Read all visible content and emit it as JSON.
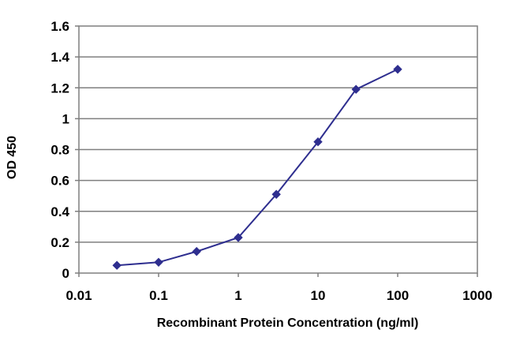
{
  "chart_data": {
    "type": "line",
    "title": "",
    "xlabel": "Recombinant Protein Concentration (ng/ml)",
    "ylabel": "OD 450",
    "x_scale": "log",
    "xlim": [
      0.01,
      1000
    ],
    "ylim": [
      0,
      1.6
    ],
    "x_ticks": [
      0.01,
      0.1,
      1,
      10,
      100,
      1000
    ],
    "x_tick_labels": [
      "0.01",
      "0.1",
      "1",
      "10",
      "100",
      "1000"
    ],
    "y_ticks": [
      0,
      0.2,
      0.4,
      0.6,
      0.8,
      1,
      1.2,
      1.4,
      1.6
    ],
    "y_tick_labels": [
      "0",
      "0.2",
      "0.4",
      "0.6",
      "0.8",
      "1",
      "1.2",
      "1.4",
      "1.6"
    ],
    "grid": "horizontal",
    "legend": "none",
    "series": [
      {
        "x": [
          0.03,
          0.1,
          0.3,
          1,
          3,
          10,
          30,
          100
        ],
        "y": [
          0.05,
          0.07,
          0.14,
          0.23,
          0.51,
          0.85,
          1.19,
          1.32
        ],
        "color": "#2e2e8f",
        "marker": "diamond"
      }
    ],
    "colors": {
      "grid": "#7f7f7f",
      "frame": "#7f7f7f",
      "series": "#2e2e8f"
    }
  }
}
